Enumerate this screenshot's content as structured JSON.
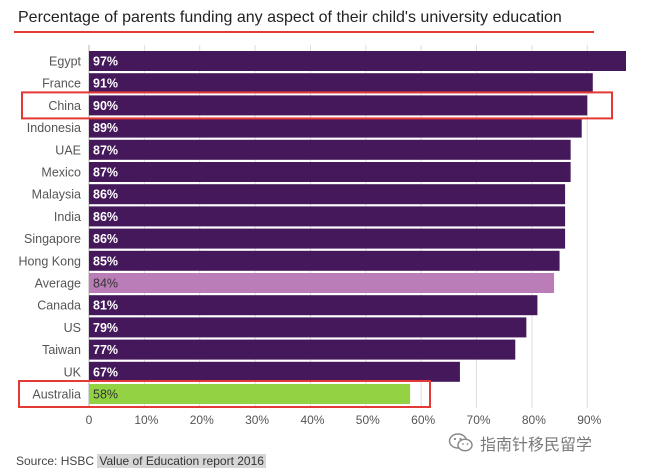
{
  "chart_data": {
    "type": "bar",
    "orientation": "horizontal",
    "title": "Percentage of parents funding any aspect of their child's university education",
    "categories": [
      "Egypt",
      "France",
      "China",
      "Indonesia",
      "UAE",
      "Mexico",
      "Malaysia",
      "India",
      "Singapore",
      "Hong Kong",
      "Average",
      "Canada",
      "US",
      "Taiwan",
      "UK",
      "Australia"
    ],
    "values": [
      97,
      91,
      90,
      89,
      87,
      87,
      86,
      86,
      86,
      85,
      84,
      81,
      79,
      77,
      67,
      58
    ],
    "data_labels": [
      "97%",
      "91%",
      "90%",
      "89%",
      "87%",
      "87%",
      "86%",
      "86%",
      "86%",
      "85%",
      "84%",
      "81%",
      "79%",
      "77%",
      "67%",
      "58%"
    ],
    "xlim": [
      0,
      97
    ],
    "x_ticks": [
      0,
      10,
      20,
      30,
      40,
      50,
      60,
      70,
      80,
      90
    ],
    "x_tick_labels": [
      "0",
      "10%",
      "20%",
      "30%",
      "40%",
      "50%",
      "60%",
      "70%",
      "80%",
      "90%"
    ],
    "colors": {
      "default": "#44185a",
      "average": "#bb7db7",
      "australia": "#93d243",
      "highlight_box": "#e53935"
    },
    "highlighted_categories": [
      "China",
      "Australia"
    ],
    "grid": true
  },
  "footer": {
    "source_prefix": "Source: HSBC ",
    "source_link": "Value of Education report 2016"
  },
  "watermark": {
    "text": "指南针移民留学",
    "icon": "wechat-icon"
  }
}
